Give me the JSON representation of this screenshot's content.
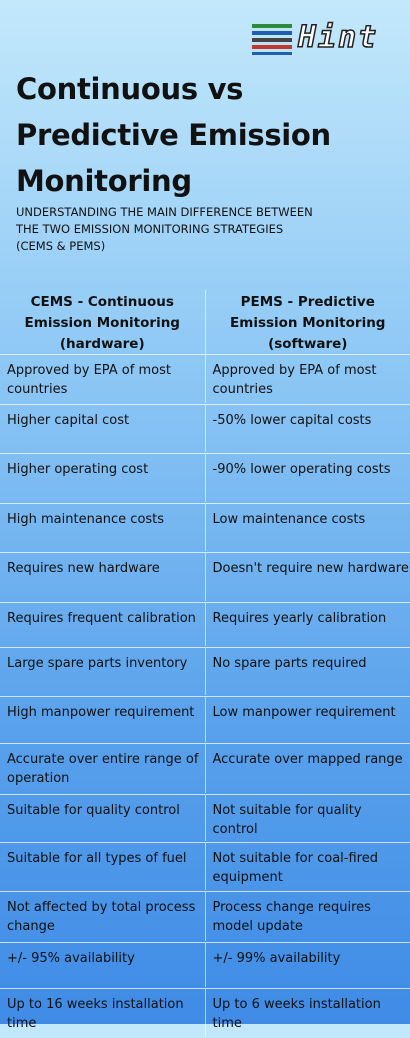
{
  "logo": {
    "text": "Hint"
  },
  "header": {
    "title": [
      "Continuous vs",
      "Predictive Emission",
      "Monitoring"
    ],
    "subtitle": [
      "UNDERSTANDING  THE MAIN DIFFERENCE BETWEEN",
      "THE TWO EMISSION MONITORING STRATEGIES",
      "(CEMS & PEMS)"
    ]
  },
  "table": {
    "columns": [
      [
        "CEMS - Continuous",
        "Emission Monitoring",
        "(hardware)"
      ],
      [
        "PEMS - Predictive",
        "Emission Monitoring",
        "(software)"
      ]
    ],
    "rows": [
      [
        "Approved by EPA of most countries",
        "Approved by EPA of most countries"
      ],
      [
        "Higher capital cost",
        "-50% lower capital costs"
      ],
      [
        "Higher operating cost",
        "-90% lower operating costs"
      ],
      [
        "High maintenance costs",
        "Low maintenance costs"
      ],
      [
        "Requires new hardware",
        "Doesn't require new hardware"
      ],
      [
        "Requires frequent calibration",
        "Requires yearly calibration"
      ],
      [
        "Large spare parts inventory",
        "No spare parts required"
      ],
      [
        "High manpower requirement",
        "Low manpower requirement"
      ],
      [
        "Accurate over entire range of operation",
        "Accurate over mapped range"
      ],
      [
        "Suitable for quality control",
        "Not suitable for quality control"
      ],
      [
        "Suitable for all types of fuel",
        "Not suitable for coal-fired equipment"
      ],
      [
        "Not affected by total process change",
        "Process change requires model update"
      ],
      [
        "+/- 95% availability",
        "+/- 99% availability"
      ],
      [
        "Up to 16 weeks installation time",
        "Up to 6 weeks installation time"
      ]
    ]
  }
}
